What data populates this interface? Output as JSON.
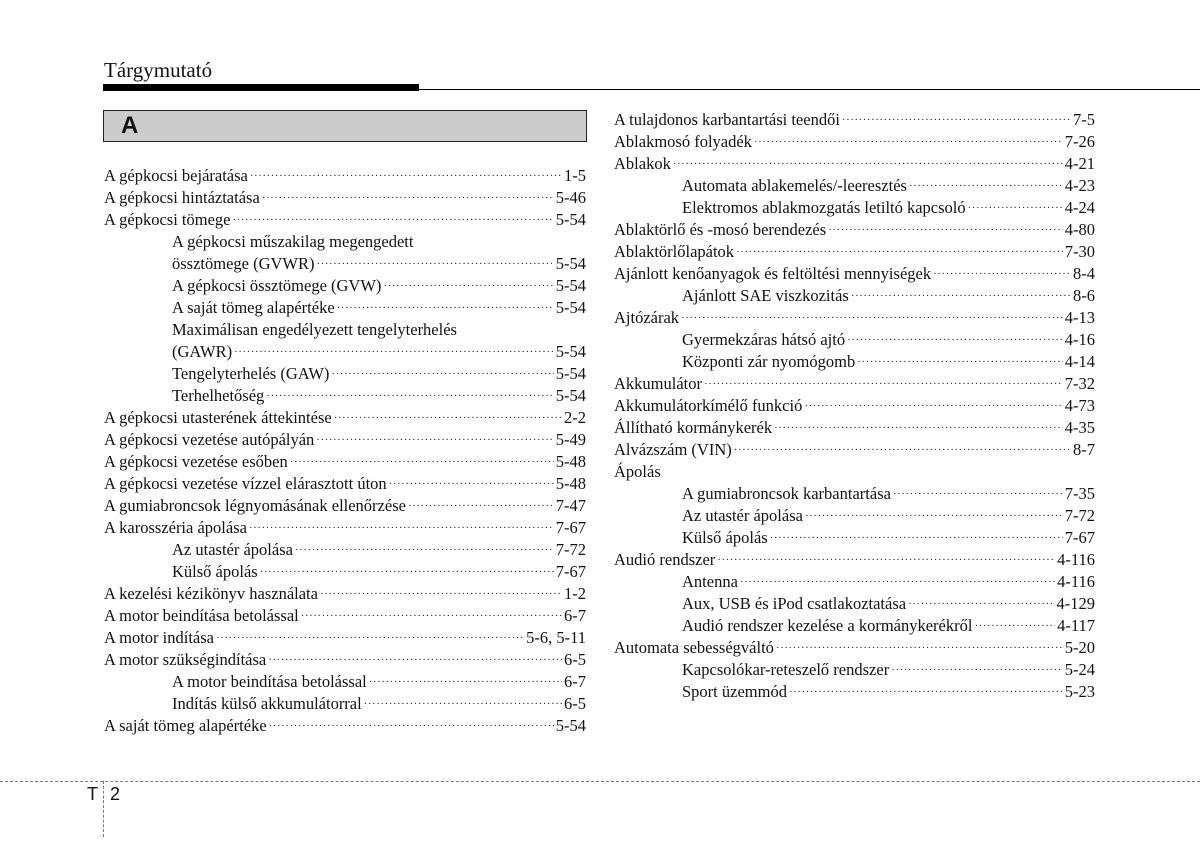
{
  "header": {
    "title": "Tárgymutató"
  },
  "section_letter": "A",
  "footer": {
    "section": "T",
    "page": "2"
  },
  "left_entries": [
    {
      "text": "A gépkocsi bejáratása",
      "page": "1-5",
      "indent": false
    },
    {
      "text": "A gépkocsi hintáztatása",
      "page": "5-46",
      "indent": false
    },
    {
      "text": "A gépkocsi tömege",
      "page": "5-54",
      "indent": false
    },
    {
      "text": "A gépkocsi műszakilag megengedett",
      "page": "",
      "indent": true
    },
    {
      "text": "össztömege (GVWR)",
      "page": "5-54",
      "indent": true
    },
    {
      "text": "A gépkocsi össztömege (GVW)",
      "page": "5-54",
      "indent": true
    },
    {
      "text": "A saját tömeg alapértéke",
      "page": "5-54",
      "indent": true
    },
    {
      "text": "Maximálisan engedélyezett tengelyterhelés",
      "page": "",
      "indent": true
    },
    {
      "text": "(GAWR)",
      "page": "5-54",
      "indent": true
    },
    {
      "text": "Tengelyterhelés (GAW)",
      "page": "5-54",
      "indent": true
    },
    {
      "text": "Terhelhetőség",
      "page": "5-54",
      "indent": true
    },
    {
      "text": "A gépkocsi utasterének áttekintése",
      "page": "2-2",
      "indent": false
    },
    {
      "text": "A gépkocsi vezetése autópályán",
      "page": "5-49",
      "indent": false
    },
    {
      "text": "A gépkocsi vezetése esőben",
      "page": "5-48",
      "indent": false
    },
    {
      "text": "A gépkocsi vezetése vízzel elárasztott úton",
      "page": "5-48",
      "indent": false
    },
    {
      "text": "A gumiabroncsok légnyomásának ellenőrzése",
      "page": "7-47",
      "indent": false
    },
    {
      "text": "A karosszéria ápolása",
      "page": "7-67",
      "indent": false
    },
    {
      "text": "Az utastér ápolása",
      "page": "7-72",
      "indent": true
    },
    {
      "text": "Külső ápolás",
      "page": "7-67",
      "indent": true
    },
    {
      "text": "A kezelési kézikönyv használata",
      "page": "1-2",
      "indent": false
    },
    {
      "text": "A motor beindítása betolással",
      "page": "6-7",
      "indent": false
    },
    {
      "text": "A motor indítása",
      "page": "5-6, 5-11",
      "indent": false
    },
    {
      "text": "A motor szükségindítása",
      "page": "6-5",
      "indent": false
    },
    {
      "text": "A motor beindítása betolással",
      "page": "6-7",
      "indent": true
    },
    {
      "text": "Indítás külső akkumulátorral",
      "page": "6-5",
      "indent": true
    },
    {
      "text": "A saját tömeg alapértéke",
      "page": "5-54",
      "indent": false
    }
  ],
  "right_entries": [
    {
      "text": "A tulajdonos karbantartási teendői",
      "page": "7-5",
      "indent": false
    },
    {
      "text": "Ablakmosó folyadék",
      "page": "7-26",
      "indent": false
    },
    {
      "text": "Ablakok",
      "page": "4-21",
      "indent": false
    },
    {
      "text": "Automata ablakemelés/-leeresztés",
      "page": "4-23",
      "indent": true
    },
    {
      "text": "Elektromos ablakmozgatás letiltó kapcsoló",
      "page": "4-24",
      "indent": true
    },
    {
      "text": "Ablaktörlő és -mosó berendezés",
      "page": "4-80",
      "indent": false
    },
    {
      "text": "Ablaktörlőlapátok",
      "page": "7-30",
      "indent": false
    },
    {
      "text": "Ajánlott kenőanyagok és feltöltési mennyiségek",
      "page": "8-4",
      "indent": false
    },
    {
      "text": "Ajánlott SAE viszkozitás",
      "page": "8-6",
      "indent": true
    },
    {
      "text": "Ajtózárak",
      "page": "4-13",
      "indent": false
    },
    {
      "text": "Gyermekzáras hátsó ajtó",
      "page": "4-16",
      "indent": true
    },
    {
      "text": "Központi zár nyomógomb",
      "page": "4-14",
      "indent": true
    },
    {
      "text": "Akkumulátor",
      "page": "7-32",
      "indent": false
    },
    {
      "text": "Akkumulátorkímélő funkció",
      "page": "4-73",
      "indent": false
    },
    {
      "text": "Állítható kormánykerék",
      "page": "4-35",
      "indent": false
    },
    {
      "text": "Alvázszám (VIN)",
      "page": "8-7",
      "indent": false
    },
    {
      "text": "Ápolás",
      "page": "",
      "indent": false
    },
    {
      "text": "A gumiabroncsok karbantartása",
      "page": "7-35",
      "indent": true
    },
    {
      "text": "Az utastér ápolása",
      "page": "7-72",
      "indent": true
    },
    {
      "text": "Külső ápolás",
      "page": "7-67",
      "indent": true
    },
    {
      "text": "Audió rendszer",
      "page": "4-116",
      "indent": false
    },
    {
      "text": "Antenna",
      "page": "4-116",
      "indent": true
    },
    {
      "text": "Aux, USB és iPod csatlakoztatása",
      "page": "4-129",
      "indent": true
    },
    {
      "text": "Audió rendszer kezelése a kormánykerékről",
      "page": "4-117",
      "indent": true
    },
    {
      "text": "Automata sebességváltó",
      "page": "5-20",
      "indent": false
    },
    {
      "text": "Kapcsolókar-reteszelő rendszer",
      "page": "5-24",
      "indent": true
    },
    {
      "text": "Sport üzemmód",
      "page": "5-23",
      "indent": true
    }
  ]
}
